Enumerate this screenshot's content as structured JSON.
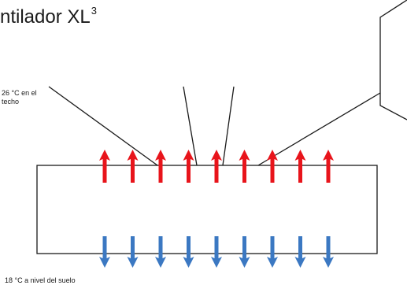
{
  "title": {
    "text": "ntilador XL",
    "superscript": "3"
  },
  "labels": {
    "ceiling_temp": "26 °C en el techo",
    "floor_temp": "18 °C a nivel del suelo"
  },
  "arrows": {
    "count_top": 9,
    "count_bottom": 9,
    "top_color": "#e8141b",
    "bottom_color": "#3b78c2"
  }
}
